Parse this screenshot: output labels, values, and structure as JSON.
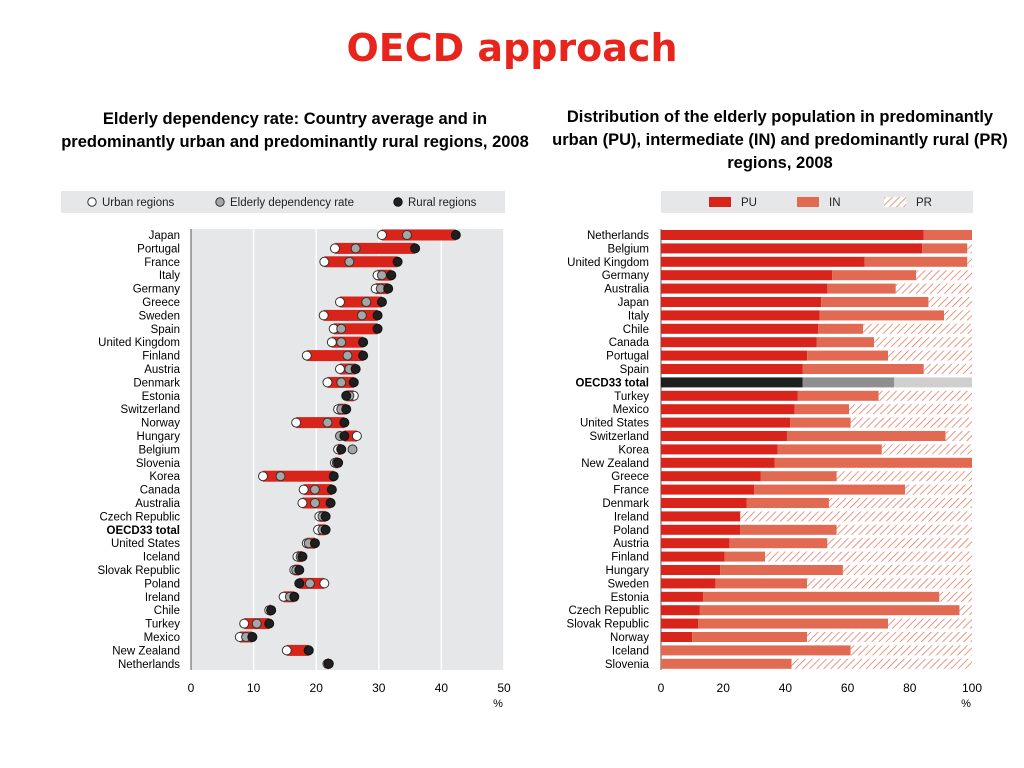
{
  "slide_title": "OECD approach",
  "colors": {
    "title": "#e8251c",
    "urban": "#ffffff",
    "elderly_rate": "#a6a6a6",
    "rural": "#1f1f1f",
    "range_bar": "#d9241c",
    "pu": "#d9241c",
    "in": "#e26a52",
    "pr_hatch": "#e26a52",
    "oecd_pu": "#1f1f1f",
    "oecd_in": "#8f8f8f",
    "oecd_pr": "#cfcfcf",
    "plot_bg": "#e6e7e8"
  },
  "chart_data": [
    {
      "type": "scatter",
      "title": "Elderly dependency rate: Country average and in predominantly urban and predominantly rural regions, 2008",
      "legend": [
        "Urban regions",
        "Elderly dependency rate",
        "Rural regions"
      ],
      "legend_position": "top",
      "xlim": [
        0,
        50
      ],
      "xticks": [
        0,
        10,
        20,
        30,
        40,
        50
      ],
      "xunit": "%",
      "grid": true,
      "highlight": "OECD33 total",
      "rows": [
        {
          "country": "Japan",
          "urban": 30.5,
          "rate": 34.5,
          "rural": 42.3
        },
        {
          "country": "Portugal",
          "urban": 23.0,
          "rate": 26.3,
          "rural": 35.8
        },
        {
          "country": "France",
          "urban": 21.3,
          "rate": 25.3,
          "rural": 33.0
        },
        {
          "country": "Italy",
          "urban": 29.8,
          "rate": 30.5,
          "rural": 32.0
        },
        {
          "country": "Germany",
          "urban": 29.5,
          "rate": 30.3,
          "rural": 31.5
        },
        {
          "country": "Greece",
          "urban": 23.8,
          "rate": 28.0,
          "rural": 30.5
        },
        {
          "country": "Sweden",
          "urban": 21.2,
          "rate": 27.3,
          "rural": 29.8
        },
        {
          "country": "Spain",
          "urban": 22.8,
          "rate": 24.0,
          "rural": 29.8
        },
        {
          "country": "United Kingdom",
          "urban": 22.5,
          "rate": 24.0,
          "rural": 27.5
        },
        {
          "country": "Finland",
          "urban": 18.5,
          "rate": 25.0,
          "rural": 27.5
        },
        {
          "country": "Austria",
          "urban": 23.8,
          "rate": 25.3,
          "rural": 26.3
        },
        {
          "country": "Denmark",
          "urban": 21.8,
          "rate": 24.0,
          "rural": 26.0
        },
        {
          "country": "Estonia",
          "urban": 26.0,
          "rate": 25.3,
          "rural": 24.8
        },
        {
          "country": "Switzerland",
          "urban": 23.5,
          "rate": 24.0,
          "rural": 24.8
        },
        {
          "country": "Norway",
          "urban": 16.8,
          "rate": 21.8,
          "rural": 24.5
        },
        {
          "country": "Hungary",
          "urban": 26.5,
          "rate": 23.8,
          "rural": 24.5
        },
        {
          "country": "Belgium",
          "urban": 23.5,
          "rate": 25.8,
          "rural": 24.0
        },
        {
          "country": "Slovenia",
          "urban": 23.0,
          "rate": 23.3,
          "rural": 23.5
        },
        {
          "country": "Korea",
          "urban": 11.5,
          "rate": 14.3,
          "rural": 22.8
        },
        {
          "country": "Canada",
          "urban": 18.0,
          "rate": 19.8,
          "rural": 22.5
        },
        {
          "country": "Australia",
          "urban": 17.8,
          "rate": 19.8,
          "rural": 22.3
        },
        {
          "country": "Czech Republic",
          "urban": 20.5,
          "rate": 21.0,
          "rural": 21.5
        },
        {
          "country": "OECD33 total",
          "urban": 20.3,
          "rate": 21.0,
          "rural": 21.5
        },
        {
          "country": "United States",
          "urban": 18.5,
          "rate": 18.8,
          "rural": 19.8
        },
        {
          "country": "Iceland",
          "urban": 17.0,
          "rate": 17.5,
          "rural": 17.8
        },
        {
          "country": "Slovak Republic",
          "urban": 16.5,
          "rate": 16.8,
          "rural": 17.3
        },
        {
          "country": "Poland",
          "urban": 21.3,
          "rate": 19.0,
          "rural": 17.3
        },
        {
          "country": "Ireland",
          "urban": 14.8,
          "rate": 15.8,
          "rural": 16.5
        },
        {
          "country": "Chile",
          "urban": 12.5,
          "rate": 12.8,
          "rural": 12.8
        },
        {
          "country": "Turkey",
          "urban": 8.5,
          "rate": 10.5,
          "rural": 12.5
        },
        {
          "country": "Mexico",
          "urban": 7.8,
          "rate": 8.8,
          "rural": 9.8
        },
        {
          "country": "New Zealand",
          "urban": 15.3,
          "rate": 18.8,
          "rural": 18.8
        },
        {
          "country": "Netherlands",
          "urban": 21.8,
          "rate": 22.0,
          "rural": 22.0
        }
      ]
    },
    {
      "type": "bar",
      "stacked": true,
      "orientation": "horizontal",
      "title": "Distribution of the elderly population in predominantly urban (PU), intermediate (IN) and predominantly rural (PR) regions, 2008",
      "legend": [
        "PU",
        "IN",
        "PR"
      ],
      "legend_position": "top",
      "xlim": [
        0,
        100
      ],
      "xticks": [
        0,
        20,
        40,
        60,
        80,
        100
      ],
      "xunit": "%",
      "highlight": "OECD33 total",
      "rows": [
        {
          "country": "Netherlands",
          "pu": 84.5,
          "in": 15.5,
          "pr": 0.0
        },
        {
          "country": "Belgium",
          "pu": 84.0,
          "in": 14.5,
          "pr": 1.5
        },
        {
          "country": "United Kingdom",
          "pu": 65.5,
          "in": 33.0,
          "pr": 1.5
        },
        {
          "country": "Germany",
          "pu": 55.0,
          "in": 27.0,
          "pr": 18.0
        },
        {
          "country": "Australia",
          "pu": 53.5,
          "in": 22.0,
          "pr": 24.5
        },
        {
          "country": "Japan",
          "pu": 51.5,
          "in": 34.5,
          "pr": 14.0
        },
        {
          "country": "Italy",
          "pu": 51.0,
          "in": 40.0,
          "pr": 9.0
        },
        {
          "country": "Chile",
          "pu": 50.5,
          "in": 14.5,
          "pr": 35.0
        },
        {
          "country": "Canada",
          "pu": 50.0,
          "in": 18.5,
          "pr": 31.5
        },
        {
          "country": "Portugal",
          "pu": 47.0,
          "in": 26.0,
          "pr": 27.0
        },
        {
          "country": "Spain",
          "pu": 45.5,
          "in": 39.0,
          "pr": 15.5
        },
        {
          "country": "OECD33 total",
          "pu": 45.5,
          "in": 29.5,
          "pr": 25.0
        },
        {
          "country": "Turkey",
          "pu": 44.0,
          "in": 26.0,
          "pr": 30.0
        },
        {
          "country": "Mexico",
          "pu": 43.0,
          "in": 17.5,
          "pr": 39.5
        },
        {
          "country": "United States",
          "pu": 41.5,
          "in": 19.5,
          "pr": 39.0
        },
        {
          "country": "Switzerland",
          "pu": 40.5,
          "in": 51.0,
          "pr": 8.5
        },
        {
          "country": "Korea",
          "pu": 37.5,
          "in": 33.5,
          "pr": 29.0
        },
        {
          "country": "New Zealand",
          "pu": 36.5,
          "in": 63.5,
          "pr": 0.0
        },
        {
          "country": "Greece",
          "pu": 32.0,
          "in": 24.5,
          "pr": 43.5
        },
        {
          "country": "France",
          "pu": 30.0,
          "in": 48.5,
          "pr": 21.5
        },
        {
          "country": "Denmark",
          "pu": 27.5,
          "in": 26.5,
          "pr": 46.0
        },
        {
          "country": "Ireland",
          "pu": 25.5,
          "in": 0.0,
          "pr": 74.5
        },
        {
          "country": "Poland",
          "pu": 25.5,
          "in": 31.0,
          "pr": 43.5
        },
        {
          "country": "Austria",
          "pu": 22.0,
          "in": 31.5,
          "pr": 46.5
        },
        {
          "country": "Finland",
          "pu": 20.5,
          "in": 13.0,
          "pr": 66.5
        },
        {
          "country": "Hungary",
          "pu": 19.0,
          "in": 39.5,
          "pr": 41.5
        },
        {
          "country": "Sweden",
          "pu": 17.5,
          "in": 29.5,
          "pr": 53.0
        },
        {
          "country": "Estonia",
          "pu": 13.5,
          "in": 76.0,
          "pr": 10.5
        },
        {
          "country": "Czech Republic",
          "pu": 12.5,
          "in": 83.5,
          "pr": 4.0
        },
        {
          "country": "Slovak Republic",
          "pu": 12.0,
          "in": 61.0,
          "pr": 27.0
        },
        {
          "country": "Norway",
          "pu": 10.0,
          "in": 37.0,
          "pr": 53.0
        },
        {
          "country": "Iceland",
          "pu": 0.0,
          "in": 61.0,
          "pr": 39.0
        },
        {
          "country": "Slovenia",
          "pu": 0.0,
          "in": 42.0,
          "pr": 58.0
        }
      ]
    }
  ]
}
